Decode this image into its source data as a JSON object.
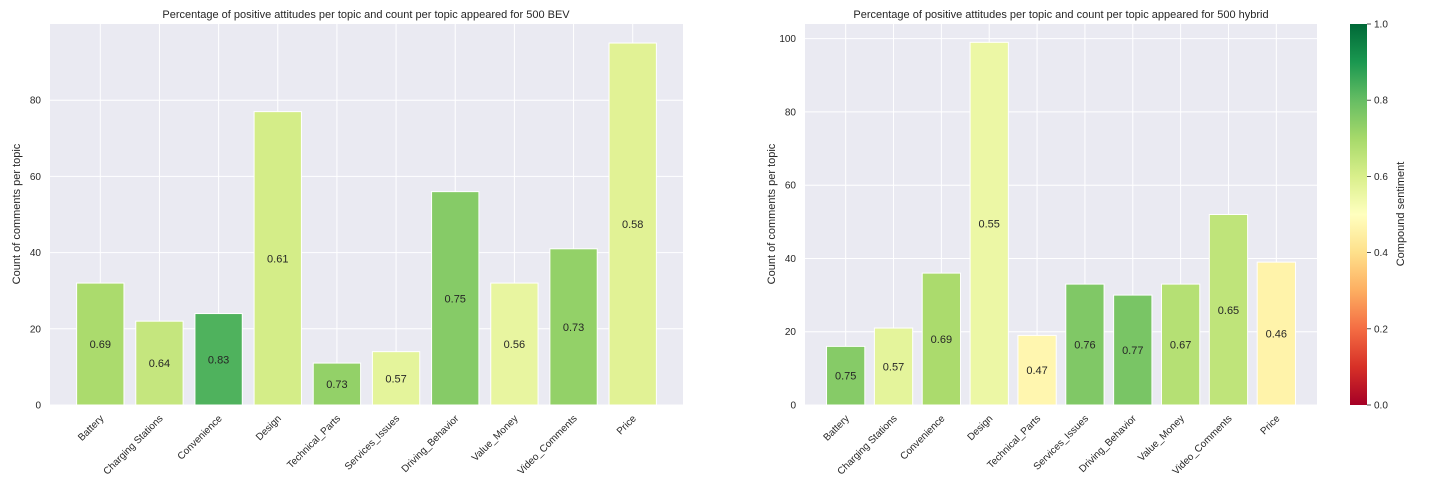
{
  "chart_data": [
    {
      "type": "bar",
      "title": "Percentage of positive attitudes per topic and count per topic appeared for 500 BEV",
      "xlabel": "",
      "ylabel": "Count of comments per topic",
      "ylim": [
        0,
        100
      ],
      "yticks": [
        0,
        20,
        40,
        60,
        80
      ],
      "categories": [
        "Battery",
        "Charging Stations",
        "Convenience",
        "Design",
        "Technical_Parts",
        "Services_Issues",
        "Driving_Behavior",
        "Value_Money",
        "Video_Comments",
        "Price"
      ],
      "values": [
        32,
        22,
        24,
        77,
        11,
        14,
        56,
        32,
        41,
        95
      ],
      "bar_labels": [
        "0.69",
        "0.64",
        "0.83",
        "0.61",
        "0.73",
        "0.57",
        "0.75",
        "0.56",
        "0.73",
        "0.58"
      ],
      "grid": true
    },
    {
      "type": "bar",
      "title": "Percentage of positive attitudes per topic and count per topic appeared for 500 hybrid",
      "xlabel": "",
      "ylabel": "Count of comments per topic",
      "ylim": [
        0,
        104
      ],
      "yticks": [
        0,
        20,
        40,
        60,
        80,
        100
      ],
      "categories": [
        "Battery",
        "Charging Stations",
        "Convenience",
        "Design",
        "Technical_Parts",
        "Services_Issues",
        "Driving_Behavior",
        "Value_Money",
        "Video_Comments",
        "Price"
      ],
      "values": [
        16,
        21,
        36,
        99,
        19,
        33,
        30,
        33,
        52,
        39
      ],
      "bar_labels": [
        "0.75",
        "0.57",
        "0.69",
        "0.55",
        "0.47",
        "0.76",
        "0.77",
        "0.67",
        "0.65",
        "0.46"
      ],
      "grid": true
    }
  ],
  "colorbar": {
    "label": "Compound sentiment",
    "range": [
      0,
      1
    ],
    "ticks": [
      "0.0",
      "0.2",
      "0.4",
      "0.6",
      "0.8",
      "1.0"
    ],
    "colormap": "RdYlGn"
  },
  "colors": {
    "background": "#eaeaf2",
    "grid": "#ffffff"
  }
}
